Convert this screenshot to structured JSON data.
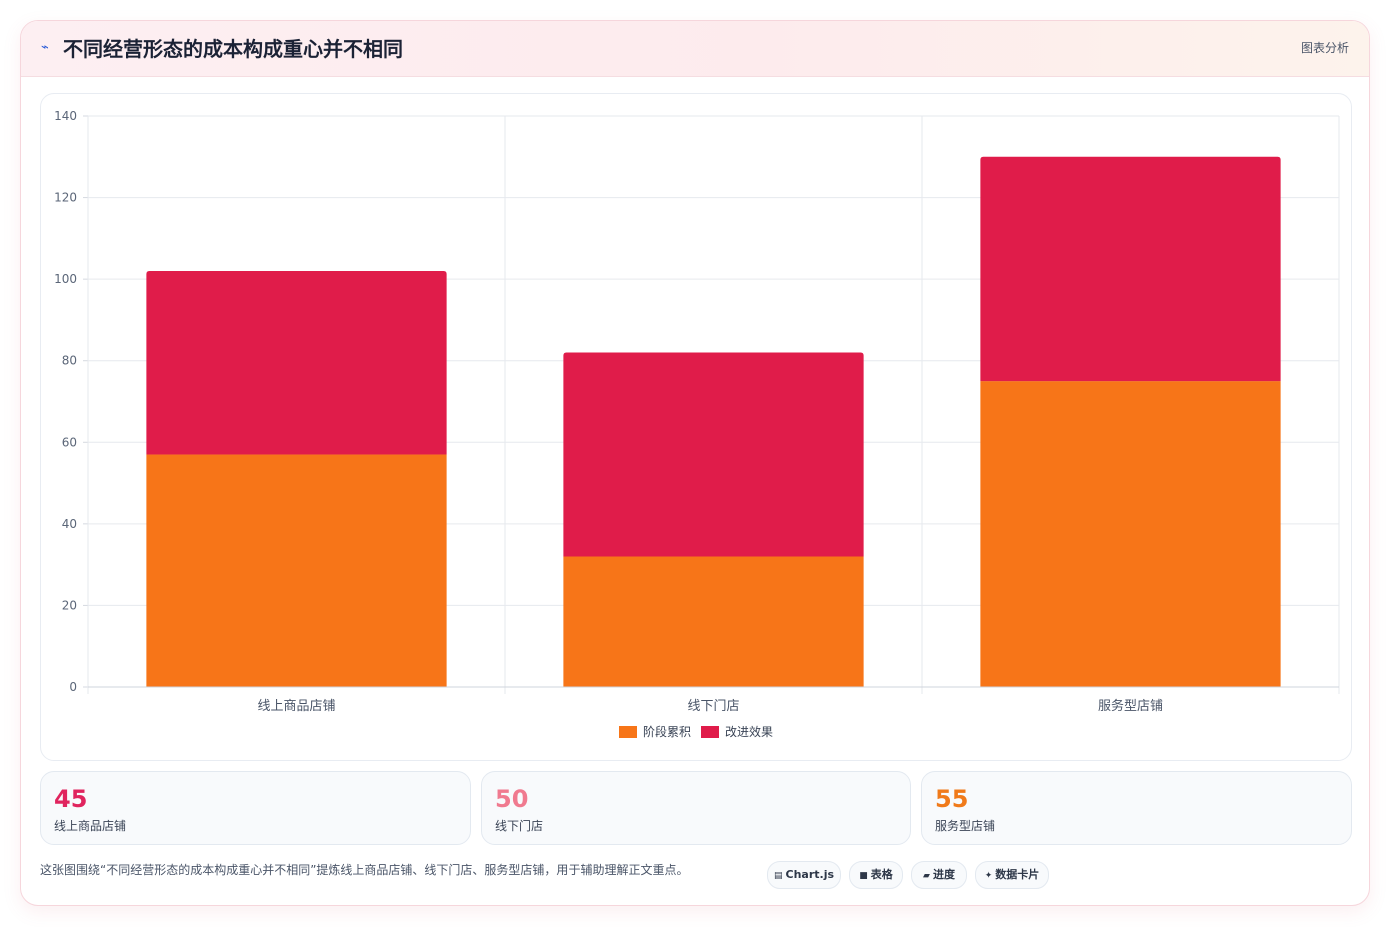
{
  "header": {
    "icon": "chart-line-icon",
    "icon_glyph": "⌁",
    "title": "不同经营形态的成本构成重心并不相同",
    "action_label": "图表分析"
  },
  "chart_data": {
    "type": "bar",
    "stacked": true,
    "categories": [
      "线上商品店铺",
      "线下门店",
      "服务型店铺"
    ],
    "series": [
      {
        "name": "阶段累积",
        "color": "#f77518",
        "values": [
          57,
          32,
          75
        ]
      },
      {
        "name": "改进效果",
        "color": "#e01c4a",
        "values": [
          45,
          50,
          55
        ]
      }
    ],
    "ylim": [
      0,
      140
    ],
    "yticks": [
      0,
      20,
      40,
      60,
      80,
      100,
      120,
      140
    ],
    "grid": true,
    "legend_position": "bottom",
    "xlabel": "",
    "ylabel": ""
  },
  "stats": [
    {
      "value": "45",
      "label": "线上商品店铺",
      "color": "#e0245e"
    },
    {
      "value": "50",
      "label": "线下门店",
      "color": "#f07a8f"
    },
    {
      "value": "55",
      "label": "服务型店铺",
      "color": "#f07a1a"
    }
  ],
  "caption": "这张图围绕“不同经营形态的成本构成重心并不相同”提炼线上商品店铺、线下门店、服务型店铺，用于辅助理解正文重点。",
  "chips": [
    {
      "icon": "grid-icon",
      "glyph": "▤",
      "label": "Chart.js"
    },
    {
      "icon": "table-icon",
      "glyph": "■",
      "label": "表格"
    },
    {
      "icon": "progress-icon",
      "glyph": "▰",
      "label": "进度"
    },
    {
      "icon": "sparkle-icon",
      "glyph": "✦",
      "label": "数据卡片"
    }
  ]
}
